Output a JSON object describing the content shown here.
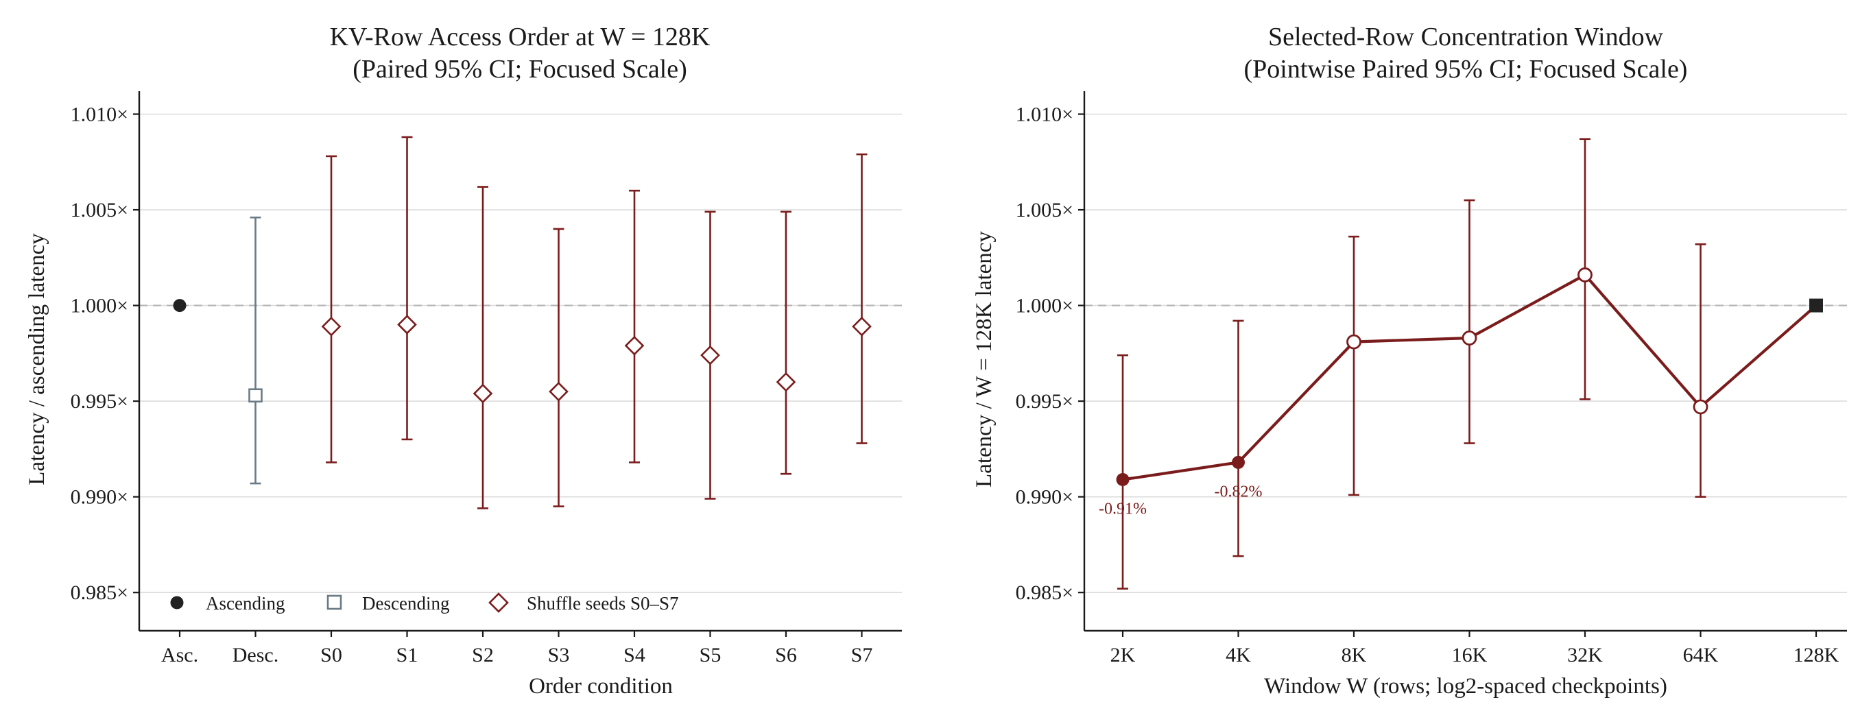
{
  "colors": {
    "ascending": "#222222",
    "descending": "#6b7b85",
    "shuffle": "#7b1c1c",
    "window_line": "#7b1c1c",
    "reference": "#222222",
    "gridline": "#dcdcdc",
    "refline": "#b3b3b3"
  },
  "chart_data": [
    {
      "type": "scatter",
      "title": "KV-Row Access Order at W = 128K",
      "subtitle": "(Paired 95% CI; Focused Scale)",
      "xlabel": "Order condition",
      "ylabel": "Latency / ascending latency",
      "ylim": [
        0.983,
        1.0112
      ],
      "yticks": [
        0.985,
        0.99,
        0.995,
        1.0,
        1.005,
        1.01
      ],
      "ytick_labels": [
        "0.985×",
        "0.990×",
        "0.995×",
        "1.000×",
        "1.005×",
        "1.010×"
      ],
      "categories": [
        "Asc.",
        "Desc.",
        "S0",
        "S1",
        "S2",
        "S3",
        "S4",
        "S5",
        "S6",
        "S7"
      ],
      "reference_line": 1.0,
      "grid": "horizontal",
      "legend_position": "bottom-left",
      "series": [
        {
          "name": "Ascending",
          "marker": "circle-filled",
          "color": "#222222",
          "points": [
            {
              "category": "Asc.",
              "value": 1.0
            }
          ]
        },
        {
          "name": "Descending",
          "marker": "square-open",
          "color": "#6b7b85",
          "points": [
            {
              "category": "Desc.",
              "value": 0.9953,
              "lower": 0.9907,
              "upper": 1.0046
            }
          ]
        },
        {
          "name": "Shuffle seeds S0–S7",
          "marker": "diamond-open",
          "color": "#7b1c1c",
          "points": [
            {
              "category": "S0",
              "value": 0.9989,
              "lower": 0.9918,
              "upper": 1.0078
            },
            {
              "category": "S1",
              "value": 0.999,
              "lower": 0.993,
              "upper": 1.0088
            },
            {
              "category": "S2",
              "value": 0.9954,
              "lower": 0.9894,
              "upper": 1.0062
            },
            {
              "category": "S3",
              "value": 0.9955,
              "lower": 0.9895,
              "upper": 1.004
            },
            {
              "category": "S4",
              "value": 0.9979,
              "lower": 0.9918,
              "upper": 1.006
            },
            {
              "category": "S5",
              "value": 0.9974,
              "lower": 0.9899,
              "upper": 1.0049
            },
            {
              "category": "S6",
              "value": 0.996,
              "lower": 0.9912,
              "upper": 1.0049
            },
            {
              "category": "S7",
              "value": 0.9989,
              "lower": 0.9928,
              "upper": 1.0079
            }
          ]
        }
      ]
    },
    {
      "type": "line",
      "title": "Selected-Row Concentration Window",
      "subtitle": "(Pointwise Paired 95% CI; Focused Scale)",
      "xlabel": "Window W (rows; log2-spaced checkpoints)",
      "ylabel": "Latency / W = 128K latency",
      "ylim": [
        0.983,
        1.0112
      ],
      "yticks": [
        0.985,
        0.99,
        0.995,
        1.0,
        1.005,
        1.01
      ],
      "ytick_labels": [
        "0.985×",
        "0.990×",
        "0.995×",
        "1.000×",
        "1.005×",
        "1.010×"
      ],
      "categories": [
        "2K",
        "4K",
        "8K",
        "16K",
        "32K",
        "64K",
        "128K"
      ],
      "reference_line": 1.0,
      "grid": "horizontal",
      "series": [
        {
          "color": "#7b1c1c",
          "points": [
            {
              "category": "2K",
              "value": 0.9909,
              "lower": 0.9852,
              "upper": 0.9974,
              "marker": "circle-filled",
              "label": "-0.91%"
            },
            {
              "category": "4K",
              "value": 0.9918,
              "lower": 0.9869,
              "upper": 0.9992,
              "marker": "circle-filled",
              "label": "-0.82%"
            },
            {
              "category": "8K",
              "value": 0.9981,
              "lower": 0.9901,
              "upper": 1.0036,
              "marker": "circle-open"
            },
            {
              "category": "16K",
              "value": 0.9983,
              "lower": 0.9928,
              "upper": 1.0055,
              "marker": "circle-open"
            },
            {
              "category": "32K",
              "value": 1.0016,
              "lower": 0.9951,
              "upper": 1.0087,
              "marker": "circle-open"
            },
            {
              "category": "64K",
              "value": 0.9947,
              "lower": 0.99,
              "upper": 1.0032,
              "marker": "circle-open"
            },
            {
              "category": "128K",
              "value": 1.0,
              "marker": "square-filled",
              "reference": true
            }
          ]
        }
      ]
    }
  ]
}
